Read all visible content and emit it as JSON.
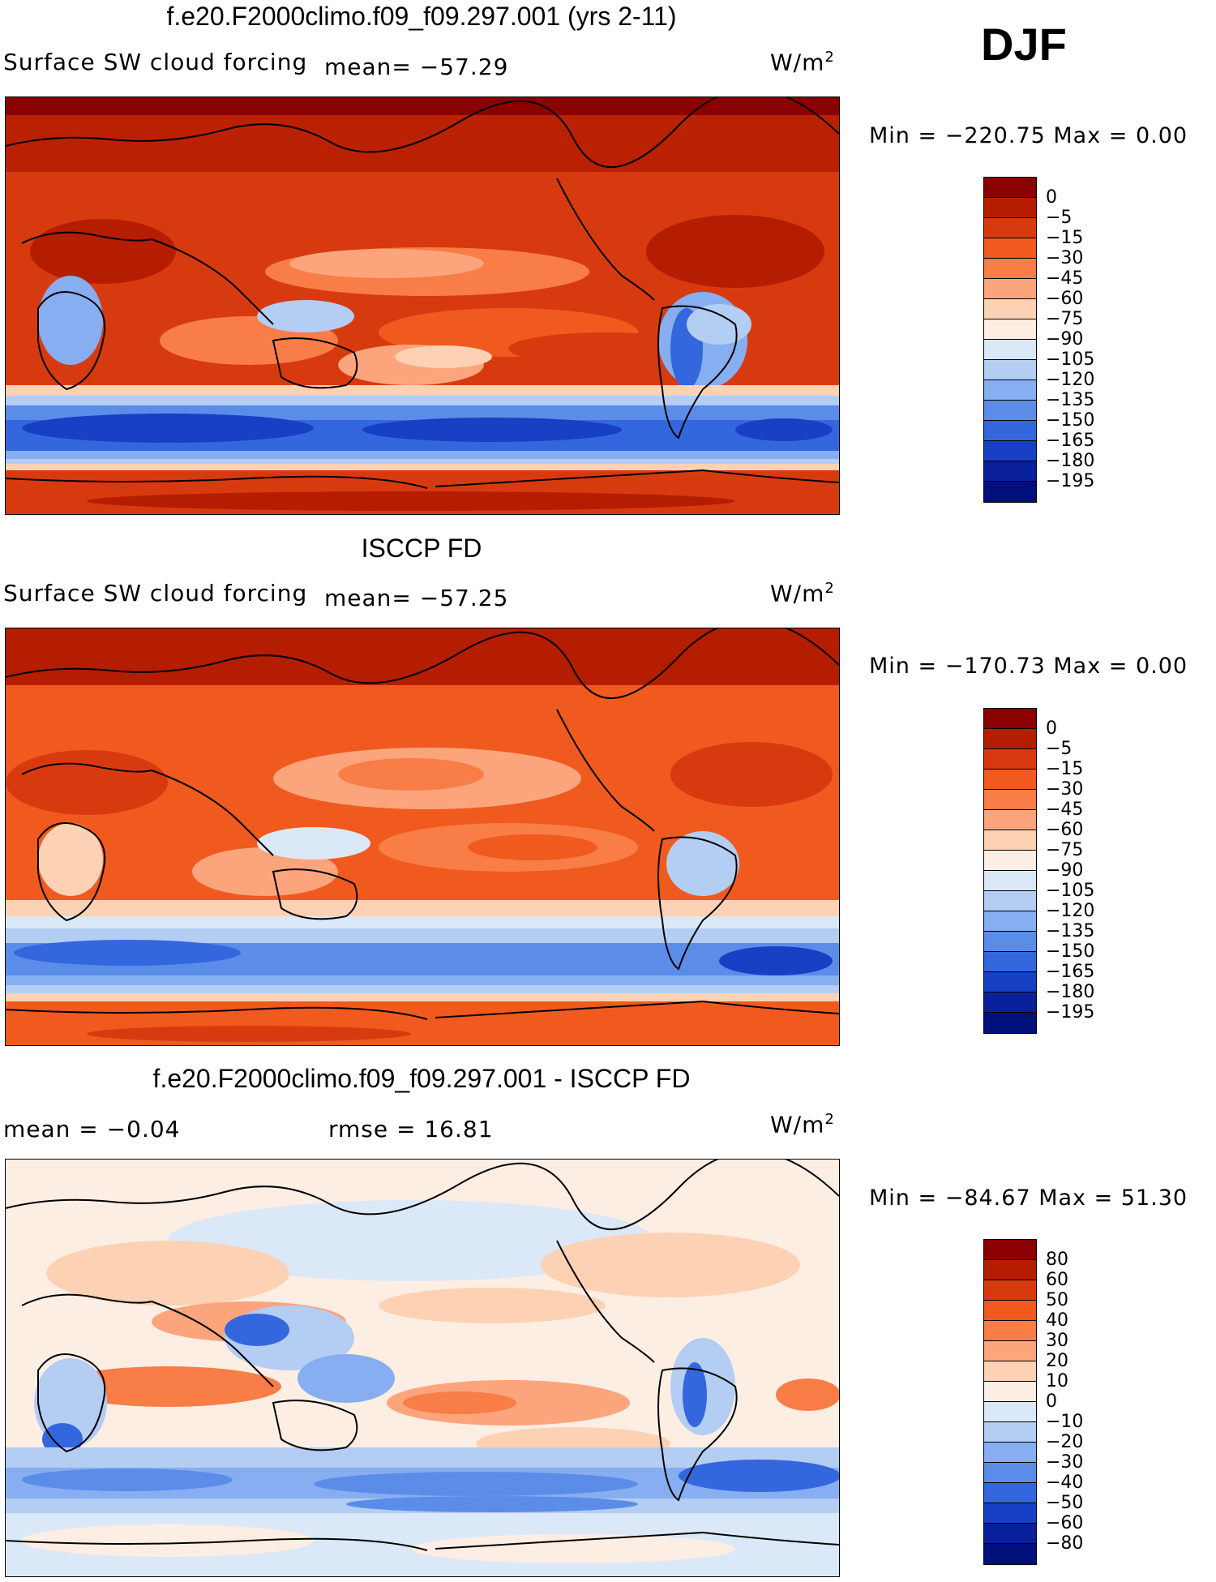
{
  "season": "DJF",
  "panels": [
    {
      "title": "f.e20.F2000climo.f09_f09.297.001 (yrs 2-11)",
      "left_label": "Surface SW cloud forcing",
      "mean_label": "mean=  −57.29",
      "units": "W/m",
      "units_sup": "2",
      "minmax": "Min  =  −220.75  Max  =     0.00",
      "colorbar": {
        "labels": [
          "0",
          "−5",
          "−15",
          "−30",
          "−45",
          "−60",
          "−75",
          "−90",
          "−105",
          "−120",
          "−135",
          "−150",
          "−165",
          "−180",
          "−195"
        ],
        "colors": [
          "#8b0000",
          "#b51d00",
          "#d83a10",
          "#f05a1e",
          "#f97d47",
          "#fca57d",
          "#fdd2b4",
          "#fdeee4",
          "#dbe8f7",
          "#b3cdf3",
          "#86aef0",
          "#5b8ce8",
          "#3467de",
          "#1840c4",
          "#0a1f9a",
          "#00107a"
        ]
      }
    },
    {
      "title": "ISCCP FD",
      "left_label": "Surface SW cloud forcing",
      "mean_label": "mean=  −57.25",
      "units": "W/m",
      "units_sup": "2",
      "minmax": "Min  =  −170.73  Max  =     0.00",
      "colorbar": {
        "labels": [
          "0",
          "−5",
          "−15",
          "−30",
          "−45",
          "−60",
          "−75",
          "−90",
          "−105",
          "−120",
          "−135",
          "−150",
          "−165",
          "−180",
          "−195"
        ],
        "colors": [
          "#8b0000",
          "#b51d00",
          "#d83a10",
          "#f05a1e",
          "#f97d47",
          "#fca57d",
          "#fdd2b4",
          "#fdeee4",
          "#dbe8f7",
          "#b3cdf3",
          "#86aef0",
          "#5b8ce8",
          "#3467de",
          "#1840c4",
          "#0a1f9a",
          "#00107a"
        ]
      }
    },
    {
      "title": "f.e20.F2000climo.f09_f09.297.001 - ISCCP FD",
      "mean_label": "mean  =    −0.04",
      "rmse_label": "rmse  =    16.81",
      "units": "W/m",
      "units_sup": "2",
      "minmax": "Min  =  −84.67  Max  =    51.30",
      "colorbar": {
        "labels": [
          "80",
          "60",
          "50",
          "40",
          "30",
          "20",
          "10",
          "0",
          "−10",
          "−20",
          "−30",
          "−40",
          "−50",
          "−60",
          "−80"
        ],
        "colors": [
          "#8b0000",
          "#b51d00",
          "#d83a10",
          "#f05a1e",
          "#f97d47",
          "#fca57d",
          "#fdd2b4",
          "#fdeee4",
          "#dbe8f7",
          "#b3cdf3",
          "#86aef0",
          "#5b8ce8",
          "#3467de",
          "#1840c4",
          "#0a1f9a",
          "#00107a"
        ]
      }
    }
  ]
}
